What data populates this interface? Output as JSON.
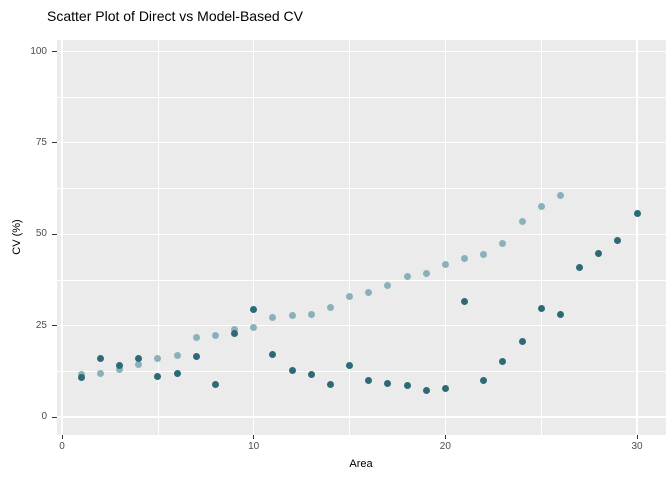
{
  "title": "Scatter Plot of Direct vs Model-Based CV",
  "chart_data": {
    "type": "scatter",
    "title": "Scatter Plot of Direct vs Model-Based CV",
    "xlabel": "Area",
    "ylabel": "CV (%)",
    "x_ticks": [
      0,
      10,
      20,
      30
    ],
    "y_ticks": [
      0,
      25,
      50,
      75,
      100
    ],
    "x_minor_gridlines": [
      5,
      15,
      25
    ],
    "y_minor_gridlines": [
      12.5,
      37.5,
      62.5,
      87.5
    ],
    "xlim": [
      -0.3,
      31.5
    ],
    "ylim": [
      -5,
      103
    ],
    "grid": "white major and minor gridlines on grey panel",
    "legend_position": "none",
    "panel_background": "#EBEBEB",
    "series": [
      {
        "name": "light-blue-series",
        "color": "#8AB1BB",
        "x": [
          1,
          2,
          3,
          4,
          5,
          6,
          7,
          8,
          9,
          10,
          11,
          12,
          13,
          14,
          15,
          16,
          17,
          18,
          19,
          20,
          21,
          22,
          23,
          24,
          25,
          26
        ],
        "y": [
          11.7,
          12.0,
          13.1,
          14.4,
          15.9,
          16.7,
          21.7,
          22.2,
          24.0,
          24.5,
          27.3,
          27.7,
          28.1,
          29.9,
          32.9,
          34.0,
          35.9,
          38.4,
          39.3,
          41.8,
          43.4,
          44.5,
          47.5,
          53.6,
          57.5,
          60.5
        ]
      },
      {
        "name": "dark-teal-series",
        "color": "#2D6A75",
        "x": [
          1,
          2,
          3,
          4,
          5,
          6,
          7,
          8,
          9,
          10,
          11,
          12,
          13,
          14,
          15,
          16,
          17,
          18,
          19,
          20,
          21,
          22,
          23,
          24,
          25,
          26,
          27,
          28,
          29,
          30
        ],
        "y": [
          10.8,
          15.9,
          14.0,
          15.9,
          11.0,
          12.0,
          16.5,
          8.9,
          22.9,
          29.3,
          17.2,
          12.6,
          11.5,
          8.8,
          14.2,
          9.9,
          9.3,
          8.5,
          7.2,
          7.9,
          31.6,
          9.9,
          15.3,
          20.6,
          29.7,
          28.1,
          41.0,
          44.6,
          48.2,
          55.7
        ]
      }
    ]
  }
}
